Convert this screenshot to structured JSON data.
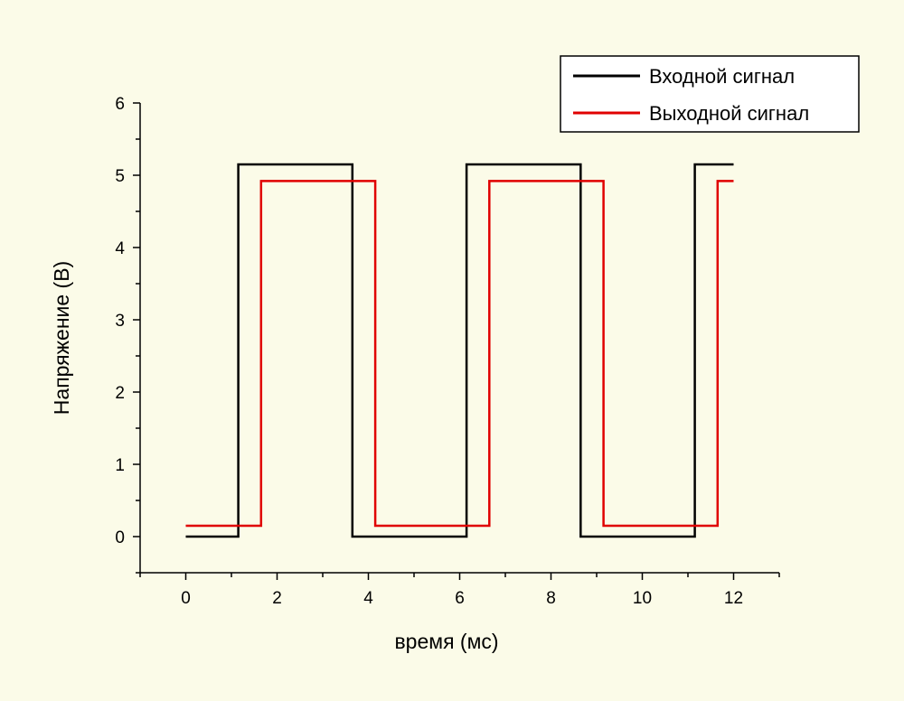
{
  "chart_data": {
    "type": "line",
    "xlabel": "время  (мс)",
    "ylabel": "Напряжение  (В)",
    "xlim": [
      -1,
      13
    ],
    "ylim": [
      -0.5,
      6
    ],
    "xticks": [
      0,
      2,
      4,
      6,
      8,
      10,
      12
    ],
    "yticks": [
      0,
      1,
      2,
      3,
      4,
      5,
      6
    ],
    "grid": false,
    "legend_position": "top-right",
    "series": [
      {
        "name": "Входной сигнал",
        "color": "#000000",
        "x": [
          0,
          1.15,
          1.15,
          3.65,
          3.65,
          6.15,
          6.15,
          8.65,
          8.65,
          11.15,
          11.15,
          12.0
        ],
        "y": [
          0.0,
          0.0,
          5.15,
          5.15,
          0.0,
          0.0,
          5.15,
          5.15,
          0.0,
          0.0,
          5.15,
          5.15
        ]
      },
      {
        "name": "Выходной сигнал",
        "color": "#e00000",
        "x": [
          0,
          1.65,
          1.65,
          4.15,
          4.15,
          6.65,
          6.65,
          9.15,
          9.15,
          11.65,
          11.65,
          12.0
        ],
        "y": [
          0.15,
          0.15,
          4.92,
          4.92,
          0.15,
          0.15,
          4.92,
          4.92,
          0.15,
          0.15,
          4.92,
          4.92
        ]
      }
    ]
  }
}
